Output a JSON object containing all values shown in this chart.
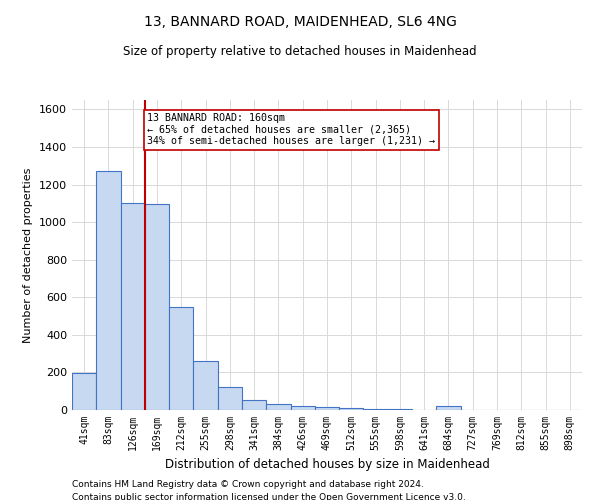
{
  "title1": "13, BANNARD ROAD, MAIDENHEAD, SL6 4NG",
  "title2": "Size of property relative to detached houses in Maidenhead",
  "xlabel": "Distribution of detached houses by size in Maidenhead",
  "ylabel": "Number of detached properties",
  "categories": [
    "41sqm",
    "83sqm",
    "126sqm",
    "169sqm",
    "212sqm",
    "255sqm",
    "298sqm",
    "341sqm",
    "384sqm",
    "426sqm",
    "469sqm",
    "512sqm",
    "555sqm",
    "598sqm",
    "641sqm",
    "684sqm",
    "727sqm",
    "769sqm",
    "812sqm",
    "855sqm",
    "898sqm"
  ],
  "values": [
    197,
    1270,
    1100,
    1095,
    550,
    263,
    120,
    55,
    30,
    20,
    14,
    8,
    5,
    5,
    0,
    20,
    0,
    0,
    0,
    0,
    0
  ],
  "bar_color": "#c6d9f0",
  "bar_edge_color": "#4472c4",
  "property_line_color": "#c00000",
  "annotation_text": "13 BANNARD ROAD: 160sqm\n← 65% of detached houses are smaller (2,365)\n34% of semi-detached houses are larger (1,231) →",
  "annotation_box_color": "#ffffff",
  "annotation_box_edge": "#c00000",
  "ylim": [
    0,
    1650
  ],
  "yticks": [
    0,
    200,
    400,
    600,
    800,
    1000,
    1200,
    1400,
    1600
  ],
  "footnote1": "Contains HM Land Registry data © Crown copyright and database right 2024.",
  "footnote2": "Contains public sector information licensed under the Open Government Licence v3.0.",
  "background_color": "#ffffff",
  "grid_color": "#d9d9d9"
}
